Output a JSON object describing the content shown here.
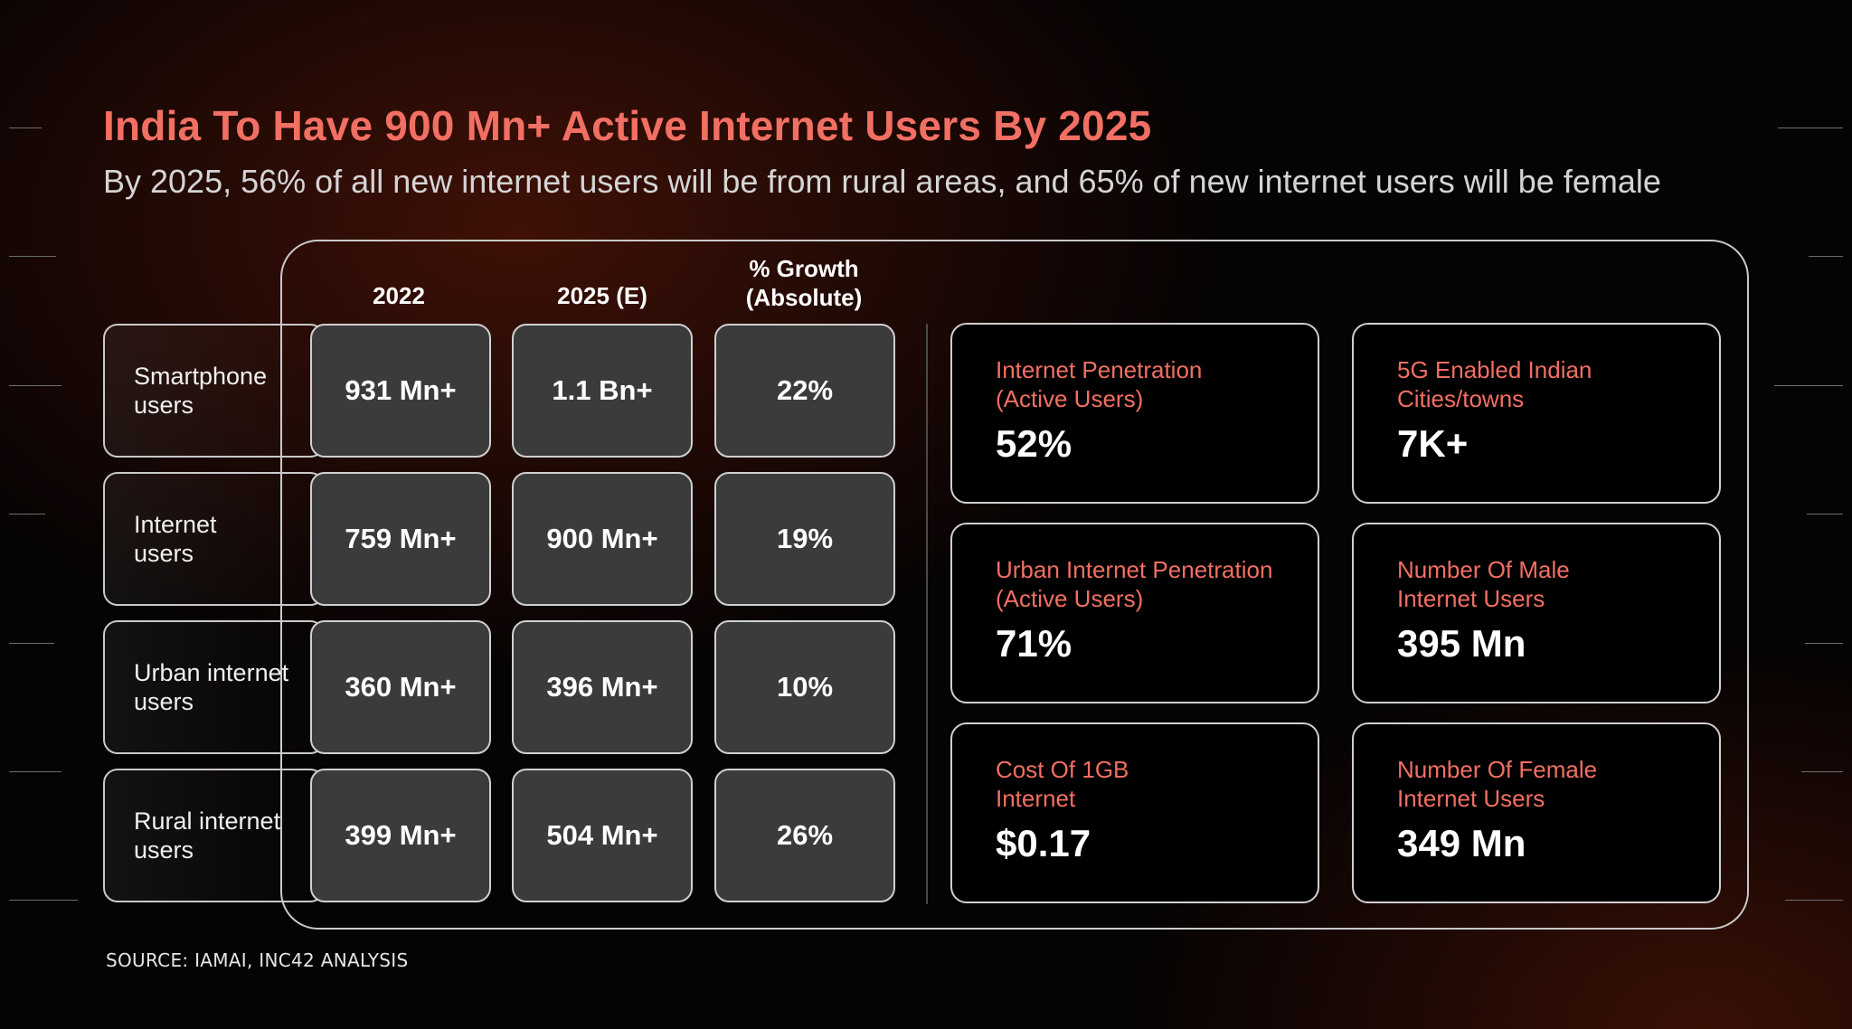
{
  "title": "India To Have 900 Mn+ Active Internet Users By 2025",
  "subtitle": "By 2025, 56% of all new internet users will be from rural areas, and 65% of new internet users will be female",
  "table": {
    "columns": [
      "2022",
      "2025 (E)",
      "% Growth\n(Absolute)"
    ],
    "rows": [
      {
        "label": "Smartphone\nusers",
        "values": [
          "931 Mn+",
          "1.1 Bn+",
          "22%"
        ]
      },
      {
        "label": "Internet\nusers",
        "values": [
          "759 Mn+",
          "900 Mn+",
          "19%"
        ]
      },
      {
        "label": "Urban internet\nusers",
        "values": [
          "360 Mn+",
          "396 Mn+",
          "10%"
        ]
      },
      {
        "label": "Rural internet\nusers",
        "values": [
          "399 Mn+",
          "504 Mn+",
          "26%"
        ]
      }
    ]
  },
  "stats": [
    {
      "label": "Internet Penetration\n(Active Users)",
      "value": "52%"
    },
    {
      "label": "5G Enabled Indian\nCities/towns",
      "value": "7K+"
    },
    {
      "label": "Urban Internet Penetration\n(Active Users)",
      "value": "71%"
    },
    {
      "label": "Number Of Male\nInternet Users",
      "value": "395 Mn"
    },
    {
      "label": "Cost Of 1GB\nInternet",
      "value": "$0.17"
    },
    {
      "label": "Number Of Female\nInternet Users",
      "value": "349 Mn"
    }
  ],
  "source": "SOURCE: IAMAI,  INC42 ANALYSIS",
  "colors": {
    "accent": "#f26f63",
    "cell_bg": "#3b3b3b",
    "background": "#060303"
  }
}
